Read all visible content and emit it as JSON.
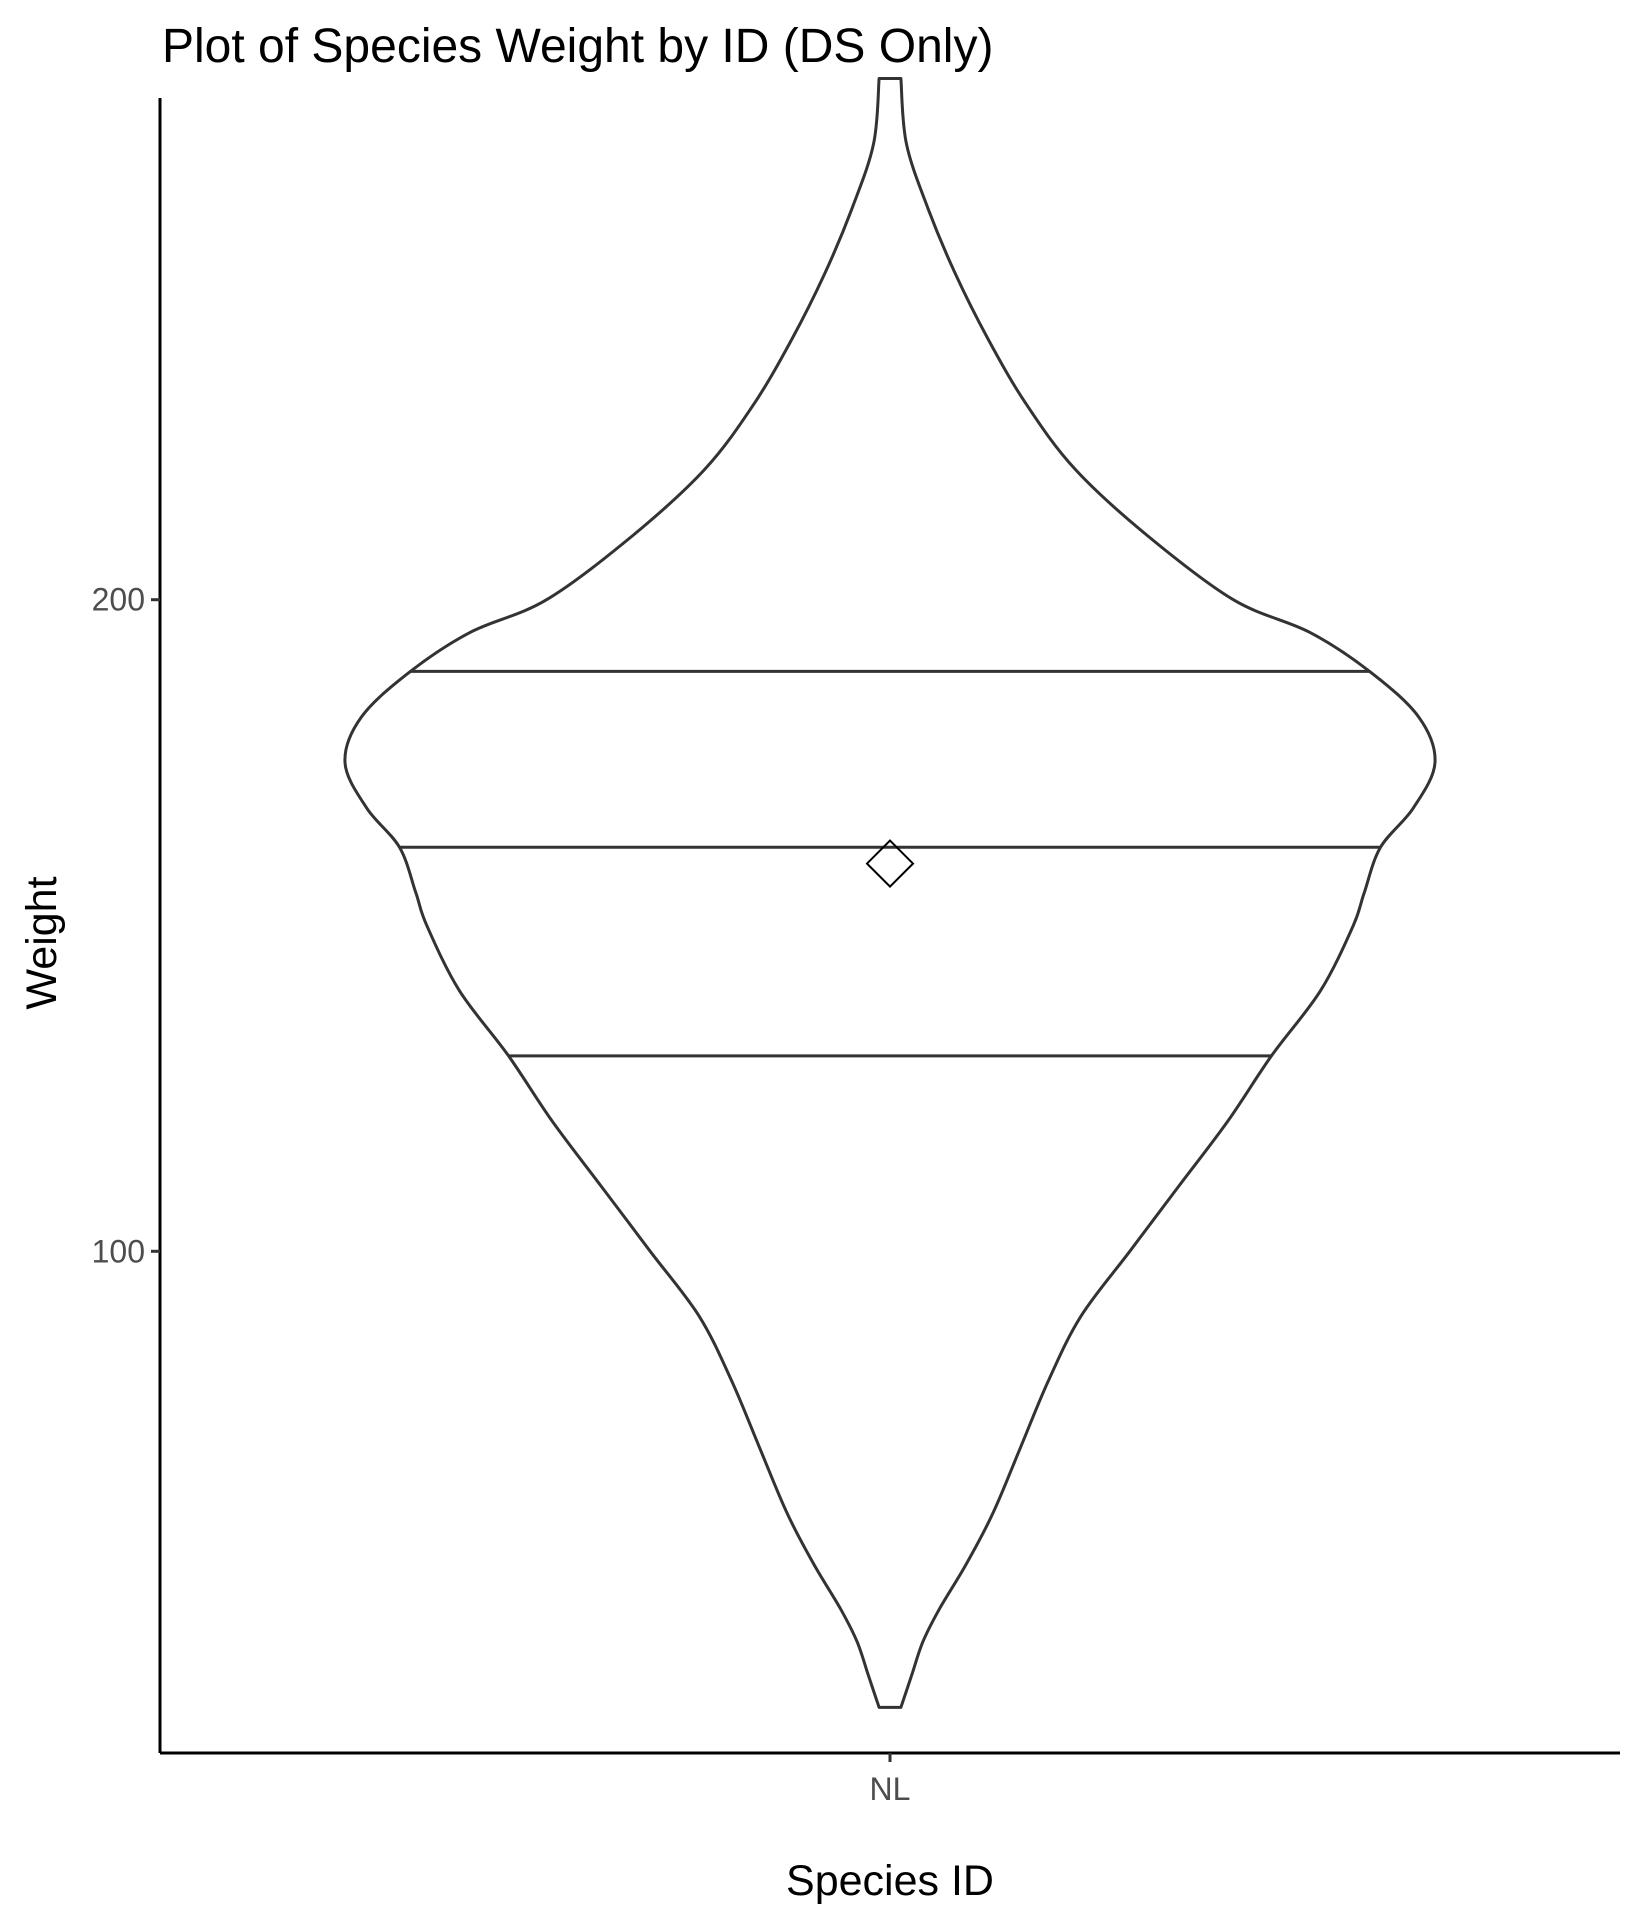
{
  "chart_data": {
    "type": "violin",
    "title": "Plot of Species Weight by ID (DS Only)",
    "xlabel": "Species ID",
    "ylabel": "Weight",
    "categories": [
      "NL"
    ],
    "ylim": [
      23,
      277
    ],
    "yticks": [
      100,
      200
    ],
    "grid": false,
    "legend": "none",
    "violin": {
      "category": "NL",
      "min_weight": 30,
      "max_weight": 280,
      "quantiles": [
        130,
        162,
        189
      ],
      "mean": 159.5,
      "density_profile": [
        [
          30,
          0.02
        ],
        [
          35,
          0.04
        ],
        [
          40,
          0.06
        ],
        [
          45,
          0.09
        ],
        [
          52,
          0.14
        ],
        [
          60,
          0.19
        ],
        [
          70,
          0.24
        ],
        [
          80,
          0.29
        ],
        [
          90,
          0.35
        ],
        [
          100,
          0.44
        ],
        [
          110,
          0.53
        ],
        [
          120,
          0.62
        ],
        [
          130,
          0.7
        ],
        [
          140,
          0.79
        ],
        [
          150,
          0.85
        ],
        [
          155,
          0.87
        ],
        [
          162,
          0.9
        ],
        [
          168,
          0.96
        ],
        [
          175,
          1.0
        ],
        [
          182,
          0.97
        ],
        [
          189,
          0.88
        ],
        [
          195,
          0.77
        ],
        [
          200,
          0.63
        ],
        [
          210,
          0.47
        ],
        [
          220,
          0.34
        ],
        [
          230,
          0.25
        ],
        [
          240,
          0.18
        ],
        [
          250,
          0.12
        ],
        [
          260,
          0.07
        ],
        [
          270,
          0.03
        ],
        [
          280,
          0.02
        ]
      ]
    },
    "colors": {
      "outline": "#333333",
      "fill": "#ffffff",
      "axis": "#000000",
      "tick_label": "#4d4d4d",
      "mean_point": "#000000"
    }
  }
}
